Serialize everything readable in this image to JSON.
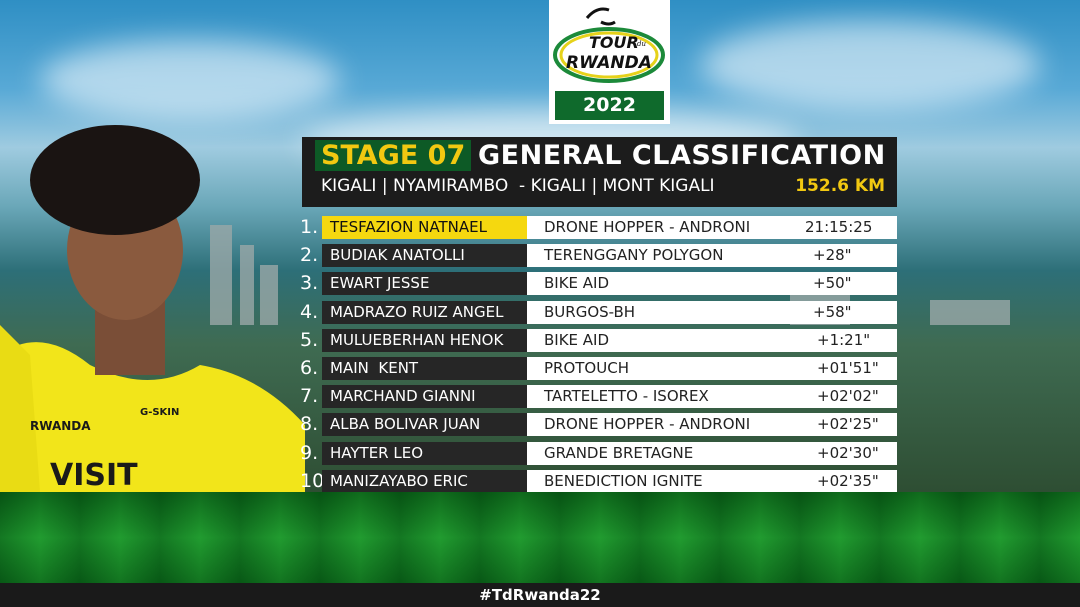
{
  "logo": {
    "text_top": "TOUR",
    "text_small": "du",
    "text_main": "RWANDA",
    "year": "2022"
  },
  "header": {
    "stage": "STAGE 07",
    "title": "GENERAL CLASSIFICATION",
    "route": "KIGALI | NYAMIRAMBO  - KIGALI | MONT KIGALI",
    "distance": "152.6 KM"
  },
  "standings": [
    {
      "rank": "1.",
      "name": "TESFAZION NATNAEL",
      "team": "DRONE HOPPER - ANDRONI",
      "time": "21:15:25"
    },
    {
      "rank": "2.",
      "name": "BUDIAK ANATOLLI",
      "team": "TERENGGANY POLYGON",
      "time": "+28\""
    },
    {
      "rank": "3.",
      "name": "EWART JESSE",
      "team": "BIKE AID",
      "time": "+50\""
    },
    {
      "rank": "4.",
      "name": "MADRAZO RUIZ ANGEL",
      "team": "BURGOS-BH",
      "time": "+58\""
    },
    {
      "rank": "5.",
      "name": "MULUEBERHAN HENOK",
      "team": "BIKE AID",
      "time": "+1:21\""
    },
    {
      "rank": "6.",
      "name": "MAIN  KENT",
      "team": "PROTOUCH",
      "time": "+01'51\""
    },
    {
      "rank": "7.",
      "name": "MARCHAND GIANNI",
      "team": "TARTELETTO - ISOREX",
      "time": "+02'02\""
    },
    {
      "rank": "8.",
      "name": "ALBA BOLIVAR JUAN",
      "team": "DRONE HOPPER - ANDRONI",
      "time": "+02'25\""
    },
    {
      "rank": "9.",
      "name": "HAYTER LEO",
      "team": "GRANDE BRETAGNE",
      "time": "+02'30\""
    },
    {
      "rank": "10.",
      "name": "MANIZAYABO ERIC",
      "team": "BENEDICTION IGNITE",
      "time": "+02'35\""
    }
  ],
  "jersey": {
    "text1": "VISIT",
    "text2": "RWANDA",
    "sponsor": "G-SKIN"
  },
  "footer": {
    "hashtag": "#TdRwanda22"
  },
  "colors": {
    "yellow": "#f5d80f",
    "green": "#0d5a26",
    "dark": "#1c1c1c"
  }
}
